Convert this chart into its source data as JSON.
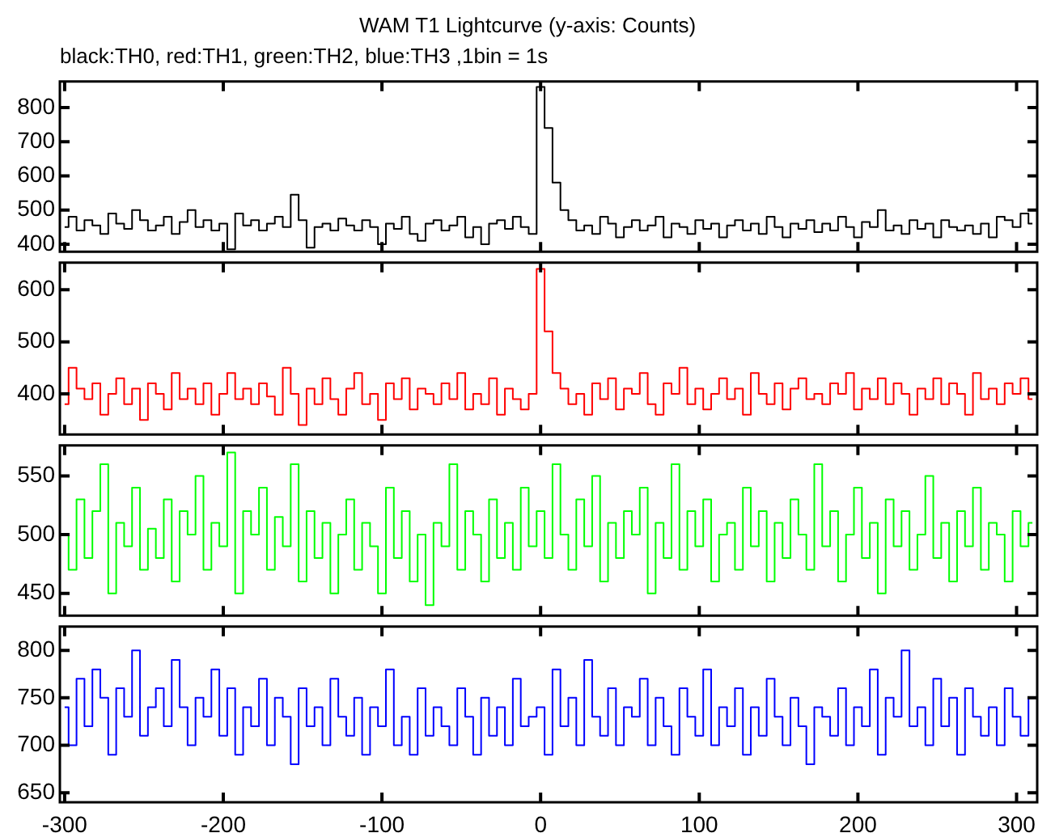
{
  "chart_data": [
    {
      "type": "step",
      "title": "WAM T1 Lightcurve (y-axis: Counts)",
      "subtitle": "black:TH0, red:TH1, green:TH2, blue:TH3 ,1bin = 1s",
      "tick_labels": "y",
      "x": [
        -300,
        -295,
        -290,
        -285,
        -280,
        -275,
        -270,
        -265,
        -260,
        -255,
        -250,
        -245,
        -240,
        -235,
        -230,
        -225,
        -220,
        -215,
        -210,
        -205,
        -200,
        -195,
        -190,
        -185,
        -180,
        -175,
        -170,
        -165,
        -160,
        -155,
        -150,
        -145,
        -140,
        -135,
        -130,
        -125,
        -120,
        -115,
        -110,
        -105,
        -100,
        -95,
        -90,
        -85,
        -80,
        -75,
        -70,
        -65,
        -60,
        -55,
        -50,
        -45,
        -40,
        -35,
        -30,
        -25,
        -20,
        -15,
        -10,
        -5,
        0,
        5,
        10,
        15,
        20,
        25,
        30,
        35,
        40,
        45,
        50,
        55,
        60,
        65,
        70,
        75,
        80,
        85,
        90,
        95,
        100,
        105,
        110,
        115,
        120,
        125,
        130,
        135,
        140,
        145,
        150,
        155,
        160,
        165,
        170,
        175,
        180,
        185,
        190,
        195,
        200,
        205,
        210,
        215,
        220,
        225,
        230,
        235,
        240,
        245,
        250,
        255,
        260,
        265,
        270,
        275,
        280,
        285,
        290,
        295,
        300,
        305,
        310
      ],
      "series": [
        {
          "color": "#000000",
          "values": [
            450,
            480,
            440,
            470,
            455,
            430,
            490,
            460,
            445,
            500,
            470,
            440,
            455,
            480,
            430,
            465,
            500,
            450,
            470,
            440,
            460,
            385,
            490,
            455,
            470,
            440,
            460,
            480,
            450,
            545,
            470,
            390,
            450,
            460,
            440,
            475,
            455,
            440,
            470,
            450,
            400,
            460,
            445,
            480,
            430,
            410,
            460,
            470,
            440,
            455,
            480,
            420,
            450,
            400,
            460,
            470,
            445,
            480,
            450,
            430,
            860,
            740,
            580,
            500,
            470,
            440,
            455,
            430,
            480,
            460,
            420,
            450,
            470,
            440,
            455,
            480,
            420,
            460,
            450,
            430,
            470,
            445,
            460,
            420,
            455,
            470,
            440,
            460,
            430,
            480,
            450,
            420,
            460,
            445,
            470,
            435,
            460,
            440,
            480,
            450,
            420,
            465,
            450,
            500,
            440,
            455,
            430,
            470,
            445,
            460,
            420,
            470,
            450,
            440,
            455,
            430,
            460,
            420,
            480,
            470,
            450,
            490,
            460
          ]
        }
      ],
      "xlim": [
        -303,
        313
      ],
      "xticks": [
        -300,
        -200,
        -100,
        0,
        100,
        200,
        300
      ],
      "ylim": [
        378,
        876
      ],
      "yticks": [
        400,
        500,
        600,
        700,
        800
      ]
    },
    {
      "type": "step",
      "tick_labels": "y",
      "x": [
        -300,
        -295,
        -290,
        -285,
        -280,
        -275,
        -270,
        -265,
        -260,
        -255,
        -250,
        -245,
        -240,
        -235,
        -230,
        -225,
        -220,
        -215,
        -210,
        -205,
        -200,
        -195,
        -190,
        -185,
        -180,
        -175,
        -170,
        -165,
        -160,
        -155,
        -150,
        -145,
        -140,
        -135,
        -130,
        -125,
        -120,
        -115,
        -110,
        -105,
        -100,
        -95,
        -90,
        -85,
        -80,
        -75,
        -70,
        -65,
        -60,
        -55,
        -50,
        -45,
        -40,
        -35,
        -30,
        -25,
        -20,
        -15,
        -10,
        -5,
        0,
        5,
        10,
        15,
        20,
        25,
        30,
        35,
        40,
        45,
        50,
        55,
        60,
        65,
        70,
        75,
        80,
        85,
        90,
        95,
        100,
        105,
        110,
        115,
        120,
        125,
        130,
        135,
        140,
        145,
        150,
        155,
        160,
        165,
        170,
        175,
        180,
        185,
        190,
        195,
        200,
        205,
        210,
        215,
        220,
        225,
        230,
        235,
        240,
        245,
        250,
        255,
        260,
        265,
        270,
        275,
        280,
        285,
        290,
        295,
        300,
        305,
        310
      ],
      "series": [
        {
          "color": "#ff0000",
          "values": [
            380,
            450,
            410,
            390,
            420,
            360,
            400,
            430,
            380,
            410,
            350,
            420,
            400,
            370,
            440,
            390,
            410,
            380,
            420,
            360,
            400,
            440,
            390,
            410,
            380,
            420,
            395,
            360,
            450,
            400,
            340,
            410,
            380,
            430,
            390,
            360,
            410,
            440,
            380,
            400,
            350,
            420,
            390,
            430,
            370,
            410,
            400,
            380,
            420,
            390,
            440,
            370,
            400,
            380,
            430,
            360,
            410,
            390,
            370,
            400,
            640,
            520,
            440,
            410,
            380,
            400,
            360,
            420,
            390,
            430,
            370,
            410,
            400,
            440,
            380,
            360,
            420,
            400,
            450,
            380,
            410,
            370,
            400,
            430,
            390,
            410,
            360,
            440,
            400,
            380,
            420,
            370,
            410,
            430,
            390,
            400,
            380,
            420,
            400,
            440,
            370,
            410,
            390,
            430,
            380,
            420,
            400,
            360,
            410,
            390,
            430,
            380,
            420,
            400,
            360,
            440,
            390,
            410,
            380,
            420,
            400,
            430,
            390
          ]
        }
      ],
      "xlim": [
        -303,
        313
      ],
      "xticks": [
        -300,
        -200,
        -100,
        0,
        100,
        200,
        300
      ],
      "ylim": [
        322,
        652
      ],
      "yticks": [
        400,
        500,
        600
      ]
    },
    {
      "type": "step",
      "tick_labels": "y",
      "x": [
        -300,
        -295,
        -290,
        -285,
        -280,
        -275,
        -270,
        -265,
        -260,
        -255,
        -250,
        -245,
        -240,
        -235,
        -230,
        -225,
        -220,
        -215,
        -210,
        -205,
        -200,
        -195,
        -190,
        -185,
        -180,
        -175,
        -170,
        -165,
        -160,
        -155,
        -150,
        -145,
        -140,
        -135,
        -130,
        -125,
        -120,
        -115,
        -110,
        -105,
        -100,
        -95,
        -90,
        -85,
        -80,
        -75,
        -70,
        -65,
        -60,
        -55,
        -50,
        -45,
        -40,
        -35,
        -30,
        -25,
        -20,
        -15,
        -10,
        -5,
        0,
        5,
        10,
        15,
        20,
        25,
        30,
        35,
        40,
        45,
        50,
        55,
        60,
        65,
        70,
        75,
        80,
        85,
        90,
        95,
        100,
        105,
        110,
        115,
        120,
        125,
        130,
        135,
        140,
        145,
        150,
        155,
        160,
        165,
        170,
        175,
        180,
        185,
        190,
        195,
        200,
        205,
        210,
        215,
        220,
        225,
        230,
        235,
        240,
        245,
        250,
        255,
        260,
        265,
        270,
        275,
        280,
        285,
        290,
        295,
        300,
        305,
        310
      ],
      "series": [
        {
          "color": "#00ff00",
          "values": [
            500,
            470,
            530,
            480,
            520,
            560,
            450,
            510,
            490,
            540,
            470,
            505,
            480,
            530,
            460,
            520,
            500,
            550,
            470,
            510,
            490,
            570,
            450,
            520,
            500,
            540,
            470,
            515,
            490,
            560,
            460,
            520,
            480,
            510,
            450,
            500,
            530,
            470,
            510,
            490,
            450,
            540,
            480,
            520,
            460,
            500,
            440,
            510,
            490,
            560,
            470,
            520,
            500,
            460,
            530,
            480,
            510,
            470,
            540,
            490,
            520,
            480,
            560,
            500,
            470,
            530,
            490,
            550,
            460,
            510,
            480,
            520,
            500,
            540,
            450,
            510,
            480,
            560,
            470,
            520,
            490,
            530,
            460,
            500,
            510,
            470,
            540,
            490,
            520,
            460,
            510,
            480,
            530,
            500,
            470,
            560,
            490,
            520,
            460,
            500,
            540,
            480,
            510,
            450,
            530,
            490,
            520,
            470,
            500,
            550,
            480,
            510,
            460,
            520,
            490,
            540,
            470,
            510,
            500,
            460,
            520,
            490,
            510
          ]
        }
      ],
      "xlim": [
        -303,
        313
      ],
      "xticks": [
        -300,
        -200,
        -100,
        0,
        100,
        200,
        300
      ],
      "ylim": [
        431,
        576
      ],
      "yticks": [
        450,
        500,
        550
      ]
    },
    {
      "type": "step",
      "x": [
        -300,
        -295,
        -290,
        -285,
        -280,
        -275,
        -270,
        -265,
        -260,
        -255,
        -250,
        -245,
        -240,
        -235,
        -230,
        -225,
        -220,
        -215,
        -210,
        -205,
        -200,
        -195,
        -190,
        -185,
        -180,
        -175,
        -170,
        -165,
        -160,
        -155,
        -150,
        -145,
        -140,
        -135,
        -130,
        -125,
        -120,
        -115,
        -110,
        -105,
        -100,
        -95,
        -90,
        -85,
        -80,
        -75,
        -70,
        -65,
        -60,
        -55,
        -50,
        -45,
        -40,
        -35,
        -30,
        -25,
        -20,
        -15,
        -10,
        -5,
        0,
        5,
        10,
        15,
        20,
        25,
        30,
        35,
        40,
        45,
        50,
        55,
        60,
        65,
        70,
        75,
        80,
        85,
        90,
        95,
        100,
        105,
        110,
        115,
        120,
        125,
        130,
        135,
        140,
        145,
        150,
        155,
        160,
        165,
        170,
        175,
        180,
        185,
        190,
        195,
        200,
        205,
        210,
        215,
        220,
        225,
        230,
        235,
        240,
        245,
        250,
        255,
        260,
        265,
        270,
        275,
        280,
        285,
        290,
        295,
        300,
        305,
        310
      ],
      "series": [
        {
          "color": "#0000ff",
          "values": [
            740,
            700,
            770,
            720,
            780,
            750,
            690,
            760,
            730,
            800,
            710,
            740,
            760,
            720,
            790,
            740,
            700,
            750,
            730,
            780,
            710,
            760,
            690,
            740,
            720,
            770,
            700,
            750,
            730,
            680,
            760,
            720,
            740,
            700,
            770,
            730,
            710,
            750,
            690,
            740,
            720,
            780,
            700,
            730,
            690,
            760,
            710,
            740,
            720,
            700,
            760,
            730,
            690,
            750,
            710,
            740,
            700,
            770,
            720,
            730,
            740,
            690,
            780,
            720,
            750,
            700,
            790,
            730,
            710,
            760,
            700,
            740,
            730,
            770,
            700,
            750,
            720,
            690,
            760,
            730,
            710,
            780,
            700,
            740,
            720,
            760,
            690,
            740,
            710,
            770,
            730,
            700,
            750,
            720,
            680,
            740,
            730,
            710,
            760,
            700,
            740,
            720,
            780,
            690,
            750,
            730,
            800,
            720,
            740,
            700,
            770,
            720,
            750,
            690,
            760,
            730,
            710,
            740,
            700,
            760,
            730,
            710,
            750
          ]
        }
      ],
      "xlim": [
        -303,
        313
      ],
      "xticks": [
        -300,
        -200,
        -100,
        0,
        100,
        200,
        300
      ],
      "ylim": [
        640,
        825
      ],
      "yticks": [
        650,
        700,
        750,
        800
      ]
    }
  ]
}
